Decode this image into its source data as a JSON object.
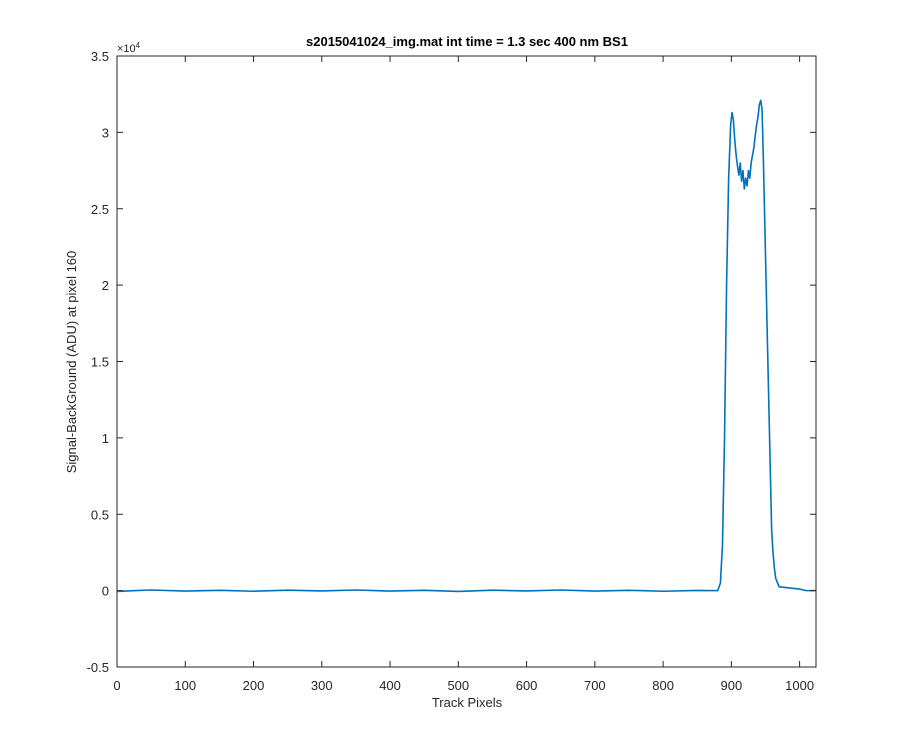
{
  "chart_data": {
    "type": "line",
    "title": "s2015041024_img.mat int time = 1.3 sec  400 nm BS1",
    "xlabel": "Track Pixels",
    "ylabel": "Signal-BackGround (ADU) at pixel 160",
    "xlim": [
      0,
      1024
    ],
    "ylim": [
      -5000,
      35000
    ],
    "y_exponent_base": "×10",
    "y_exponent_power": "4",
    "x_ticks": [
      0,
      100,
      200,
      300,
      400,
      500,
      600,
      700,
      800,
      900,
      1000
    ],
    "x_tick_labels": [
      "0",
      "100",
      "200",
      "300",
      "400",
      "500",
      "600",
      "700",
      "800",
      "900",
      "1000"
    ],
    "y_ticks": [
      -5000,
      0,
      5000,
      10000,
      15000,
      20000,
      25000,
      30000,
      35000
    ],
    "y_tick_labels": [
      "-0.5",
      "0",
      "0.5",
      "1",
      "1.5",
      "2",
      "2.5",
      "3",
      "3.5"
    ],
    "grid": false,
    "series": [
      {
        "color": "#0072BD",
        "x": [
          0,
          50,
          100,
          150,
          200,
          250,
          300,
          350,
          400,
          450,
          500,
          550,
          600,
          650,
          700,
          750,
          800,
          850,
          880,
          884,
          887,
          890,
          893,
          896,
          899,
          901,
          903,
          905,
          907,
          909,
          911,
          913,
          915,
          917,
          919,
          921,
          923,
          925,
          927,
          929,
          931,
          933,
          935,
          937,
          939,
          941,
          943,
          945,
          947,
          949,
          951,
          953,
          955,
          957,
          959,
          961,
          963,
          965,
          970,
          980,
          990,
          1000,
          1010,
          1024
        ],
        "y": [
          -50,
          40,
          -30,
          20,
          -40,
          30,
          -20,
          40,
          -30,
          20,
          -50,
          30,
          -20,
          40,
          -30,
          20,
          -40,
          10,
          0,
          500,
          3000,
          10000,
          20000,
          27000,
          30500,
          31300,
          30800,
          29500,
          28500,
          27800,
          27200,
          28000,
          26800,
          27500,
          26300,
          27000,
          26500,
          27500,
          27000,
          28000,
          28500,
          29000,
          29800,
          30500,
          31000,
          31800,
          32100,
          31500,
          28000,
          24000,
          20000,
          16000,
          12000,
          8000,
          4000,
          2500,
          1500,
          800,
          250,
          200,
          150,
          100,
          0,
          0
        ]
      }
    ]
  }
}
